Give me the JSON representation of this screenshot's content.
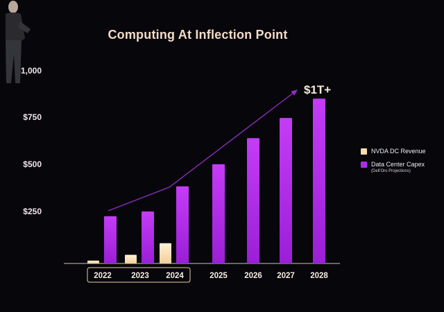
{
  "slide": {
    "title": "Computing At Inflection Point",
    "callout": "$1T+"
  },
  "colors": {
    "background": "#07060b",
    "capex": "#b02ae8",
    "revenue": "#f6dcae",
    "axis": "#cfc6a8",
    "arrow": "#8e2fc4"
  },
  "chart_data": {
    "type": "bar",
    "categories": [
      "2022",
      "2023",
      "2024",
      "2025",
      "2026",
      "2027",
      "2028"
    ],
    "highlighted_categories": [
      "2022",
      "2023",
      "2024"
    ],
    "ylim": [
      0,
      1000
    ],
    "yticks": [
      "$1,000",
      "$750",
      "$500",
      "$250"
    ],
    "ytick_values": [
      1000,
      750,
      500,
      250
    ],
    "grid": false,
    "legend_position": "right",
    "series": [
      {
        "name": "NVDA DC Revenue",
        "color": "#f6dcae",
        "values": [
          15,
          45,
          105,
          null,
          null,
          null,
          null
        ]
      },
      {
        "name": "Data Center Capex",
        "note": "(Dell'Oro Projections)",
        "color": "#b02ae8",
        "values": [
          245,
          270,
          400,
          515,
          650,
          755,
          855
        ]
      }
    ]
  }
}
